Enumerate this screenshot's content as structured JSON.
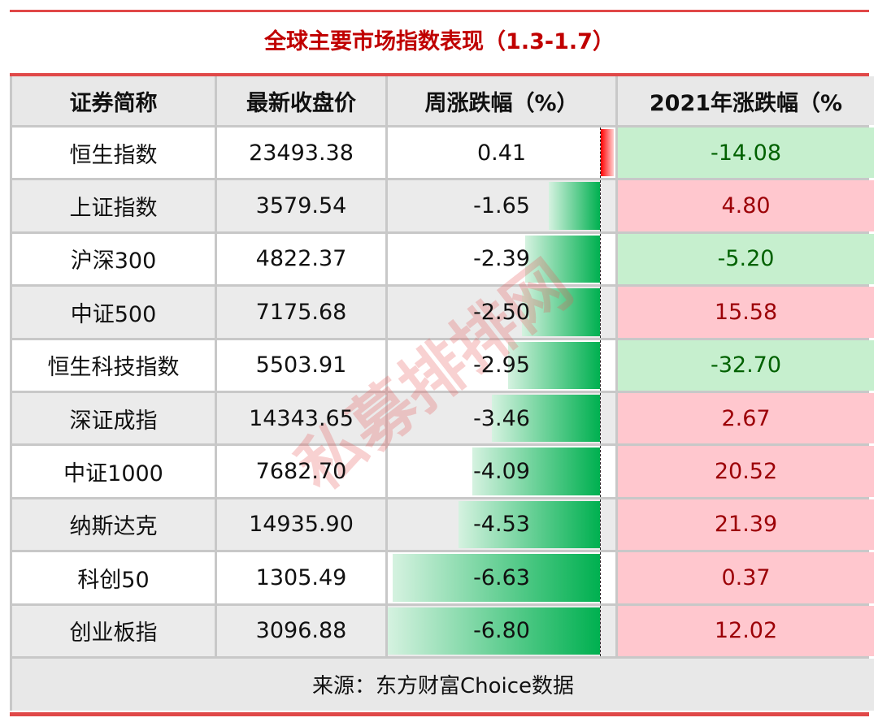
{
  "title": "全球主要市场指数表现（1.3-1.7）",
  "headers": [
    "证券简称",
    "最新收盘价",
    "周涨跌幅（%）",
    "2021年涨跌幅（%"
  ],
  "rows": [
    {
      "name": "恒生指数",
      "close": "23493.38",
      "week": 0.41,
      "week_text": "0.41",
      "year": "-14.08"
    },
    {
      "name": "上证指数",
      "close": "3579.54",
      "week": -1.65,
      "week_text": "-1.65",
      "year": "4.80"
    },
    {
      "name": "沪深300",
      "close": "4822.37",
      "week": -2.39,
      "week_text": "-2.39",
      "year": "-5.20"
    },
    {
      "name": "中证500",
      "close": "7175.68",
      "week": -2.5,
      "week_text": "-2.50",
      "year": "15.58"
    },
    {
      "name": "恒生科技指数",
      "close": "5503.91",
      "week": -2.95,
      "week_text": "-2.95",
      "year": "-32.70"
    },
    {
      "name": "深证成指",
      "close": "14343.65",
      "week": -3.46,
      "week_text": "-3.46",
      "year": "2.67"
    },
    {
      "name": "中证1000",
      "close": "7682.70",
      "week": -4.09,
      "week_text": "-4.09",
      "year": "20.52"
    },
    {
      "name": "纳斯达克",
      "close": "14935.90",
      "week": -4.53,
      "week_text": "-4.53",
      "year": "21.39"
    },
    {
      "name": "科创50",
      "close": "1305.49",
      "week": -6.63,
      "week_text": "-6.63",
      "year": "0.37"
    },
    {
      "name": "创业板指",
      "close": "3096.88",
      "week": -6.8,
      "week_text": "-6.80",
      "year": "12.02"
    }
  ],
  "footer": "来源：东方财富Choice数据",
  "watermark": "私募排排网",
  "colors": {
    "title": "#c00000",
    "up_bar": "#ff0000",
    "down_bar": "#00b050",
    "pos_bg": "#ffc7ce",
    "neg_bg": "#c6efce"
  }
}
